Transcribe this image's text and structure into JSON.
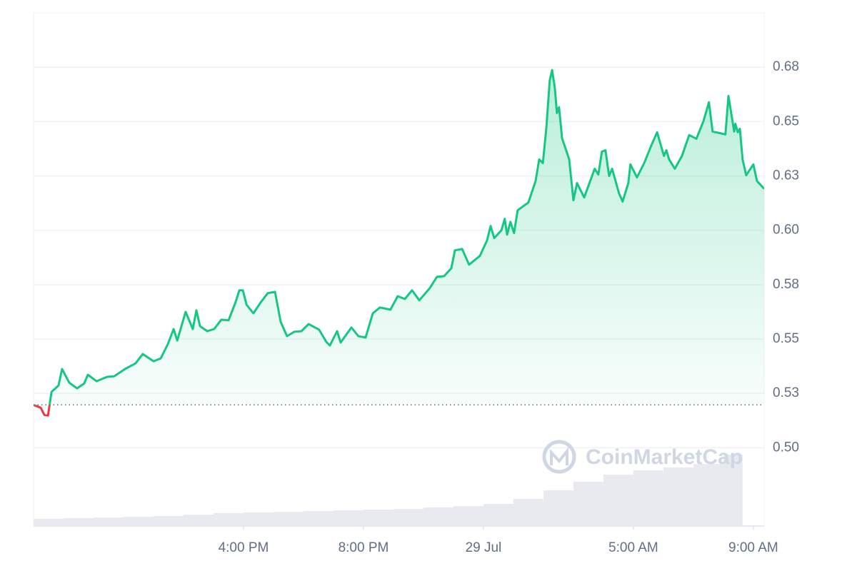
{
  "chart_data": {
    "type": "line",
    "watermark": "CoinMarketCap",
    "x": [
      0,
      0.24,
      0.36,
      0.48,
      0.6,
      0.83,
      0.95,
      1.19,
      1.45,
      1.69,
      1.81,
      2.1,
      2.45,
      2.69,
      3.05,
      3.4,
      3.64,
      4.0,
      4.24,
      4.48,
      4.67,
      4.79,
      5.07,
      5.31,
      5.43,
      5.55,
      5.79,
      6.02,
      6.26,
      6.5,
      6.74,
      6.86,
      6.98,
      7.1,
      7.33,
      7.57,
      7.81,
      8.05,
      8.24,
      8.45,
      8.69,
      8.93,
      9.17,
      9.52,
      9.76,
      9.88,
      10.12,
      10.24,
      10.6,
      10.83,
      11.07,
      11.31,
      11.55,
      11.9,
      12.14,
      12.38,
      12.62,
      12.86,
      13.21,
      13.45,
      13.69,
      13.93,
      14.05,
      14.29,
      14.52,
      14.88,
      15.12,
      15.24,
      15.36,
      15.6,
      15.71,
      15.79,
      15.9,
      16.02,
      16.14,
      16.5,
      16.74,
      16.86,
      16.98,
      17.1,
      17.21,
      17.29,
      17.38,
      17.45,
      17.52,
      17.62,
      17.86,
      18.0,
      18.12,
      18.36,
      18.71,
      18.83,
      18.95,
      19.07,
      19.19,
      19.29,
      19.52,
      19.64,
      19.83,
      19.9,
      20.12,
      20.36,
      20.6,
      20.79,
      21.02,
      21.1,
      21.19,
      21.38,
      21.62,
      21.86,
      22.1,
      22.33,
      22.52,
      22.64,
      22.88,
      23.07,
      23.17,
      23.36,
      23.4,
      23.48,
      23.55,
      23.64,
      23.76,
      24.0,
      24.12,
      24.36
    ],
    "values": [
      0.5197,
      0.5184,
      0.5151,
      0.5148,
      0.5257,
      0.5286,
      0.5362,
      0.5299,
      0.5273,
      0.5296,
      0.5336,
      0.5306,
      0.5326,
      0.5329,
      0.5362,
      0.5388,
      0.5431,
      0.5398,
      0.5411,
      0.5477,
      0.5546,
      0.5493,
      0.5625,
      0.5546,
      0.5632,
      0.5559,
      0.5536,
      0.5546,
      0.5589,
      0.5586,
      0.5671,
      0.5724,
      0.5724,
      0.5658,
      0.5618,
      0.5668,
      0.5711,
      0.5717,
      0.5579,
      0.5513,
      0.5533,
      0.5536,
      0.5569,
      0.5543,
      0.5487,
      0.547,
      0.5536,
      0.5484,
      0.5553,
      0.5513,
      0.5507,
      0.5618,
      0.5645,
      0.5635,
      0.5697,
      0.5684,
      0.5724,
      0.5678,
      0.5734,
      0.5786,
      0.5789,
      0.5826,
      0.5908,
      0.5914,
      0.5842,
      0.5882,
      0.5954,
      0.602,
      0.5964,
      0.6,
      0.6053,
      0.598,
      0.6039,
      0.5987,
      0.6092,
      0.6128,
      0.6227,
      0.6326,
      0.6309,
      0.6474,
      0.6688,
      0.6737,
      0.6655,
      0.6539,
      0.6566,
      0.6424,
      0.6326,
      0.6138,
      0.6217,
      0.6151,
      0.6283,
      0.6257,
      0.6362,
      0.6368,
      0.625,
      0.6283,
      0.6171,
      0.6132,
      0.6217,
      0.6303,
      0.6243,
      0.6309,
      0.6391,
      0.6451,
      0.6342,
      0.6368,
      0.6326,
      0.6283,
      0.6342,
      0.6438,
      0.6421,
      0.65,
      0.6589,
      0.6454,
      0.6447,
      0.6441,
      0.6618,
      0.6454,
      0.649,
      0.6451,
      0.6467,
      0.6326,
      0.6253,
      0.6303,
      0.6227,
      0.6191
    ],
    "color": "#16c784",
    "down_color": "#ea3943",
    "baseline": 0.5197,
    "volume": {
      "x": [
        0,
        1,
        2,
        3,
        4,
        5,
        6,
        7,
        8,
        9,
        10,
        11,
        12,
        13,
        14,
        15,
        16,
        17,
        18,
        19,
        20,
        21,
        22,
        23
      ],
      "values": [
        10,
        11,
        12,
        13,
        14,
        16,
        18,
        19,
        20,
        21,
        22,
        23,
        24,
        26,
        28,
        31,
        38,
        50,
        62,
        72,
        78,
        82,
        87,
        100
      ],
      "color": "#e8eaf0"
    },
    "xlim": [
      0,
      24.36
    ],
    "ylim": [
      0.464,
      0.7
    ],
    "xticks": [
      {
        "value": 7,
        "label": "4:00 PM"
      },
      {
        "value": 11,
        "label": "8:00 PM"
      },
      {
        "value": 15,
        "label": "29 Jul"
      },
      {
        "value": 20,
        "label": "5:00 AM"
      },
      {
        "value": 24,
        "label": "9:00 AM"
      }
    ],
    "yticks": [
      {
        "value": 0.5,
        "label": "0.50"
      },
      {
        "value": 0.525,
        "label": "0.53"
      },
      {
        "value": 0.55,
        "label": "0.55"
      },
      {
        "value": 0.575,
        "label": "0.58"
      },
      {
        "value": 0.6,
        "label": "0.60"
      },
      {
        "value": 0.625,
        "label": "0.63"
      },
      {
        "value": 0.65,
        "label": "0.65"
      },
      {
        "value": 0.675,
        "label": "0.68"
      }
    ],
    "grid": true
  }
}
